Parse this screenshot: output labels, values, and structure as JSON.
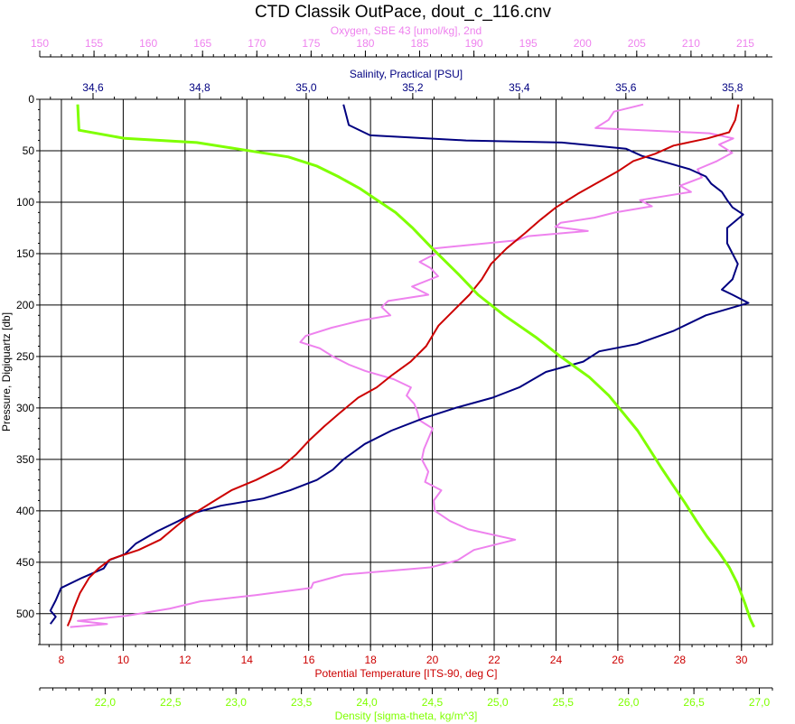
{
  "chart_data": {
    "type": "line",
    "title": "CTD Classik OutPace, dout_c_116.cnv",
    "grid": true,
    "y_axis": {
      "label": "Pressure, Digiquartz [db]",
      "range": [
        0,
        530
      ],
      "ticks": [
        0,
        50,
        100,
        150,
        200,
        250,
        300,
        350,
        400,
        450,
        500
      ],
      "inverted": true
    },
    "x_axes": [
      {
        "id": "oxygen",
        "position": "top-outer",
        "label": "Oxygen, SBE 43 [umol/kg], 2nd",
        "color": "#ee82ee",
        "range": [
          150,
          217.5
        ],
        "ticks": [
          150,
          155,
          160,
          165,
          170,
          175,
          180,
          185,
          190,
          195,
          200,
          205,
          210,
          215
        ],
        "tick_labels": [
          "150",
          "155",
          "160",
          "165",
          "170",
          "175",
          "180",
          "185",
          "190",
          "195",
          "200",
          "205",
          "210",
          "215"
        ]
      },
      {
        "id": "salinity",
        "position": "top-inner",
        "label": "Salinity, Practical [PSU]",
        "color": "#000080",
        "range": [
          34.5,
          35.875
        ],
        "ticks": [
          34.6,
          34.8,
          35.0,
          35.2,
          35.4,
          35.6,
          35.8
        ],
        "tick_labels": [
          "34,6",
          "34,8",
          "35,0",
          "35,2",
          "35,4",
          "35,6",
          "35,8"
        ]
      },
      {
        "id": "temperature",
        "position": "bottom-inner",
        "label": "Potential Temperature [ITS-90, deg C]",
        "color": "#cc0000",
        "range": [
          7.3,
          31.0
        ],
        "ticks": [
          8,
          10,
          12,
          14,
          16,
          18,
          20,
          22,
          24,
          26,
          28,
          30
        ],
        "tick_labels": [
          "8",
          "10",
          "12",
          "14",
          "16",
          "18",
          "20",
          "22",
          "24",
          "26",
          "28",
          "30"
        ]
      },
      {
        "id": "density",
        "position": "bottom-outer",
        "label": "Density [sigma-theta, kg/m^3]",
        "color": "#7fff00",
        "range": [
          21.5,
          27.1
        ],
        "ticks": [
          22.0,
          22.5,
          23.0,
          23.5,
          24.0,
          24.5,
          25.0,
          25.5,
          26.0,
          26.5,
          27.0
        ],
        "tick_labels": [
          "22,0",
          "22,5",
          "23,0",
          "23,5",
          "24,0",
          "24,5",
          "25,0",
          "25,5",
          "26,0",
          "26,5",
          "27,0"
        ]
      }
    ],
    "series": [
      {
        "axis": "oxygen",
        "color": "#ee82ee",
        "points": [
          [
            205.6,
            5
          ],
          [
            202.9,
            12
          ],
          [
            202.4,
            20
          ],
          [
            201.2,
            28
          ],
          [
            211.7,
            33
          ],
          [
            213.9,
            38
          ],
          [
            212.6,
            44
          ],
          [
            213.8,
            52
          ],
          [
            212.4,
            60
          ],
          [
            210.6,
            68
          ],
          [
            211.0,
            76
          ],
          [
            209.0,
            84
          ],
          [
            210.0,
            90
          ],
          [
            205.3,
            98
          ],
          [
            206.4,
            104
          ],
          [
            203.0,
            110
          ],
          [
            201.1,
            115
          ],
          [
            198.0,
            120
          ],
          [
            197.5,
            124
          ],
          [
            200.5,
            128
          ],
          [
            195.0,
            133
          ],
          [
            194.0,
            137
          ],
          [
            186.3,
            145
          ],
          [
            186.5,
            150
          ],
          [
            185.0,
            158
          ],
          [
            186.0,
            164
          ],
          [
            186.7,
            172
          ],
          [
            184.3,
            182
          ],
          [
            185.8,
            190
          ],
          [
            182.1,
            196
          ],
          [
            181.5,
            202
          ],
          [
            182.3,
            210
          ],
          [
            179.6,
            215
          ],
          [
            176.9,
            222
          ],
          [
            174.5,
            230
          ],
          [
            174.0,
            236
          ],
          [
            175.8,
            242
          ],
          [
            177.0,
            250
          ],
          [
            178.5,
            258
          ],
          [
            180.0,
            264
          ],
          [
            182.6,
            272
          ],
          [
            184.2,
            280
          ],
          [
            183.8,
            288
          ],
          [
            184.5,
            296
          ],
          [
            184.8,
            304
          ],
          [
            185.0,
            312
          ],
          [
            186.2,
            320
          ],
          [
            185.8,
            330
          ],
          [
            185.4,
            340
          ],
          [
            185.2,
            350
          ],
          [
            185.8,
            362
          ],
          [
            185.5,
            372
          ],
          [
            187.0,
            380
          ],
          [
            186.3,
            390
          ],
          [
            186.4,
            400
          ],
          [
            187.8,
            410
          ],
          [
            189.5,
            418
          ],
          [
            193.8,
            428
          ],
          [
            190.0,
            438
          ],
          [
            188.5,
            448
          ],
          [
            186.0,
            455
          ],
          [
            178.0,
            462
          ],
          [
            175.2,
            470
          ],
          [
            175.0,
            475
          ],
          [
            169.9,
            482
          ],
          [
            164.8,
            488
          ],
          [
            162.0,
            495
          ],
          [
            158.0,
            502
          ],
          [
            153.5,
            507
          ],
          [
            156.2,
            510
          ],
          [
            152.8,
            513
          ]
        ]
      },
      {
        "axis": "salinity",
        "color": "#000080",
        "points": [
          [
            35.07,
            5
          ],
          [
            35.08,
            25
          ],
          [
            35.12,
            35
          ],
          [
            35.3,
            40
          ],
          [
            35.48,
            42
          ],
          [
            35.6,
            48
          ],
          [
            35.63,
            55
          ],
          [
            35.68,
            62
          ],
          [
            35.72,
            68
          ],
          [
            35.75,
            75
          ],
          [
            35.76,
            82
          ],
          [
            35.78,
            90
          ],
          [
            35.79,
            98
          ],
          [
            35.8,
            105
          ],
          [
            35.82,
            112
          ],
          [
            35.79,
            125
          ],
          [
            35.79,
            140
          ],
          [
            35.81,
            160
          ],
          [
            35.8,
            175
          ],
          [
            35.78,
            185
          ],
          [
            35.8,
            190
          ],
          [
            35.83,
            198
          ],
          [
            35.75,
            210
          ],
          [
            35.69,
            225
          ],
          [
            35.62,
            238
          ],
          [
            35.55,
            245
          ],
          [
            35.52,
            255
          ],
          [
            35.45,
            265
          ],
          [
            35.4,
            280
          ],
          [
            35.35,
            290
          ],
          [
            35.28,
            300
          ],
          [
            35.22,
            310
          ],
          [
            35.16,
            322
          ],
          [
            35.11,
            335
          ],
          [
            35.07,
            350
          ],
          [
            35.05,
            360
          ],
          [
            35.02,
            370
          ],
          [
            34.97,
            380
          ],
          [
            34.92,
            388
          ],
          [
            34.84,
            395
          ],
          [
            34.79,
            402
          ],
          [
            34.76,
            410
          ],
          [
            34.72,
            420
          ],
          [
            34.68,
            432
          ],
          [
            34.66,
            442
          ],
          [
            34.63,
            448
          ],
          [
            34.62,
            456
          ],
          [
            34.58,
            465
          ],
          [
            34.54,
            475
          ],
          [
            34.53,
            487
          ],
          [
            34.52,
            497
          ],
          [
            34.53,
            503
          ],
          [
            34.52,
            510
          ]
        ]
      },
      {
        "axis": "temperature",
        "color": "#cc0000",
        "points": [
          [
            29.9,
            5
          ],
          [
            29.8,
            20
          ],
          [
            29.6,
            32
          ],
          [
            28.9,
            38
          ],
          [
            27.8,
            45
          ],
          [
            27.2,
            53
          ],
          [
            26.5,
            60
          ],
          [
            26.0,
            70
          ],
          [
            25.4,
            80
          ],
          [
            24.7,
            92
          ],
          [
            24.0,
            105
          ],
          [
            23.5,
            117
          ],
          [
            23.0,
            130
          ],
          [
            22.4,
            145
          ],
          [
            21.9,
            160
          ],
          [
            21.6,
            175
          ],
          [
            21.2,
            190
          ],
          [
            20.7,
            205
          ],
          [
            20.2,
            220
          ],
          [
            19.8,
            240
          ],
          [
            19.3,
            255
          ],
          [
            18.7,
            268
          ],
          [
            18.2,
            280
          ],
          [
            17.6,
            290
          ],
          [
            17.0,
            305
          ],
          [
            16.5,
            318
          ],
          [
            16.0,
            332
          ],
          [
            15.6,
            345
          ],
          [
            15.1,
            358
          ],
          [
            14.3,
            370
          ],
          [
            13.5,
            380
          ],
          [
            12.8,
            393
          ],
          [
            12.0,
            408
          ],
          [
            11.6,
            418
          ],
          [
            11.2,
            428
          ],
          [
            10.5,
            438
          ],
          [
            9.6,
            447
          ],
          [
            9.2,
            456
          ],
          [
            8.9,
            465
          ],
          [
            8.6,
            480
          ],
          [
            8.4,
            495
          ],
          [
            8.3,
            505
          ],
          [
            8.2,
            512
          ]
        ]
      },
      {
        "axis": "density",
        "color": "#7fff00",
        "points": [
          [
            21.79,
            5
          ],
          [
            21.8,
            30
          ],
          [
            22.15,
            38
          ],
          [
            22.7,
            42
          ],
          [
            23.0,
            48
          ],
          [
            23.4,
            56
          ],
          [
            23.62,
            65
          ],
          [
            23.78,
            75
          ],
          [
            23.95,
            87
          ],
          [
            24.08,
            98
          ],
          [
            24.22,
            110
          ],
          [
            24.35,
            125
          ],
          [
            24.5,
            145
          ],
          [
            24.7,
            170
          ],
          [
            24.85,
            190
          ],
          [
            25.05,
            210
          ],
          [
            25.3,
            232
          ],
          [
            25.48,
            250
          ],
          [
            25.7,
            270
          ],
          [
            25.85,
            288
          ],
          [
            25.96,
            305
          ],
          [
            26.07,
            322
          ],
          [
            26.16,
            340
          ],
          [
            26.25,
            358
          ],
          [
            26.34,
            375
          ],
          [
            26.43,
            392
          ],
          [
            26.52,
            410
          ],
          [
            26.6,
            425
          ],
          [
            26.69,
            440
          ],
          [
            26.77,
            455
          ],
          [
            26.83,
            470
          ],
          [
            26.89,
            490
          ],
          [
            26.93,
            505
          ],
          [
            26.96,
            513
          ]
        ]
      }
    ]
  }
}
